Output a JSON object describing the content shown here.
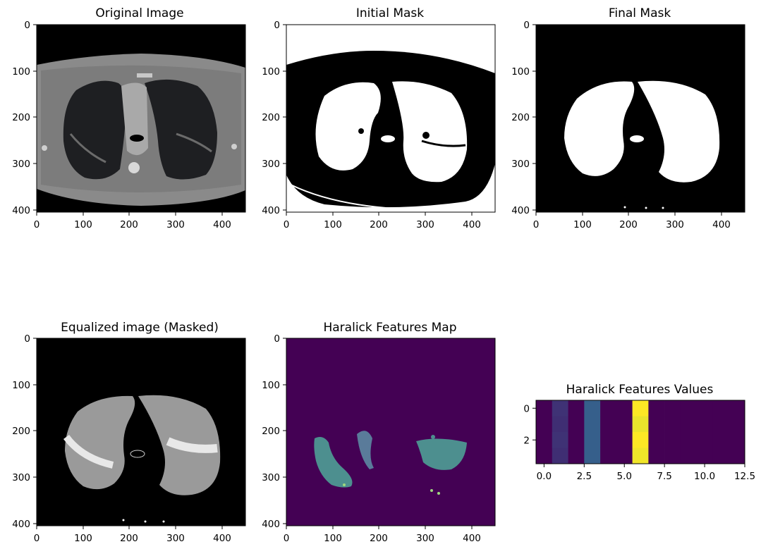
{
  "panels": [
    {
      "id": "original",
      "title": "Original Image"
    },
    {
      "id": "initial_mask",
      "title": "Initial Mask"
    },
    {
      "id": "final_mask",
      "title": "Final Mask"
    },
    {
      "id": "equalized",
      "title": "Equalized image (Masked)"
    },
    {
      "id": "haralick_map",
      "title": "Haralick Features Map"
    }
  ],
  "image_axes": {
    "x_ticks": [
      "0",
      "100",
      "200",
      "300",
      "400"
    ],
    "y_ticks": [
      "0",
      "100",
      "200",
      "300",
      "400"
    ],
    "x_range": [
      0,
      450
    ],
    "y_range": [
      0,
      405
    ]
  },
  "chart_data": {
    "type": "heatmap",
    "title": "Haralick Features Values",
    "colormap": "viridis",
    "rows": 4,
    "cols": 13,
    "xlim": [
      -0.5,
      12.5
    ],
    "ylim": [
      3.5,
      -0.5
    ],
    "x_ticks": [
      "0.0",
      "2.5",
      "5.0",
      "7.5",
      "10.0",
      "12.5"
    ],
    "x_tick_values": [
      0,
      2.5,
      5,
      7.5,
      10,
      12.5
    ],
    "y_ticks": [
      "0",
      "2"
    ],
    "y_tick_values": [
      0,
      2
    ],
    "values": [
      [
        0,
        0.15,
        0,
        0.3,
        0,
        0,
        1.0,
        0,
        0,
        0,
        0,
        0,
        0
      ],
      [
        0,
        0.14,
        0,
        0.3,
        0,
        0,
        0.97,
        0,
        0,
        0,
        0,
        0,
        0
      ],
      [
        0,
        0.15,
        0,
        0.3,
        0,
        0,
        1.0,
        0,
        0,
        0,
        0,
        0,
        0
      ],
      [
        0,
        0.14,
        0,
        0.3,
        0,
        0,
        0.98,
        0,
        0,
        0,
        0,
        0,
        0
      ]
    ]
  }
}
